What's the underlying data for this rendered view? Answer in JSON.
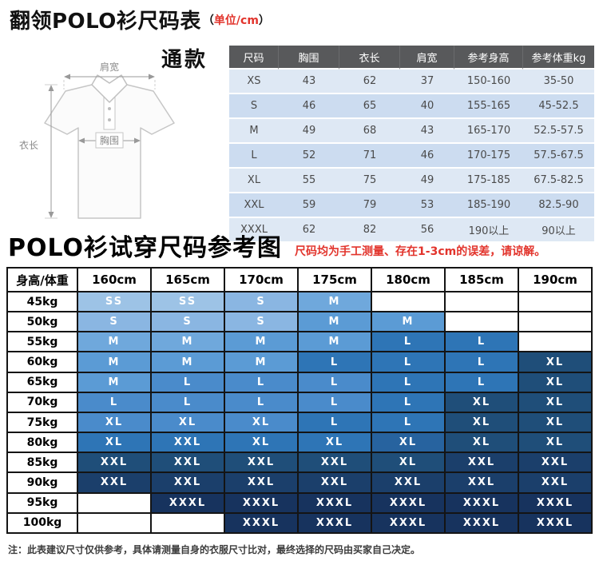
{
  "header": {
    "title": "翻领POLO衫尺码表",
    "unit_open": "（",
    "unit_text": "单位/cm",
    "unit_close": "）"
  },
  "diagram": {
    "style_label": "通款",
    "shoulder_label": "肩宽",
    "length_label": "衣长",
    "chest_label": "胸围"
  },
  "size_table": {
    "headers": [
      "尺码",
      "胸围",
      "衣长",
      "肩宽",
      "参考身高",
      "参考体重kg"
    ],
    "rows": [
      [
        "XS",
        "43",
        "62",
        "37",
        "150-160",
        "35-50"
      ],
      [
        "S",
        "46",
        "65",
        "40",
        "155-165",
        "45-52.5"
      ],
      [
        "M",
        "49",
        "68",
        "43",
        "165-170",
        "52.5-57.5"
      ],
      [
        "L",
        "52",
        "71",
        "46",
        "170-175",
        "57.5-67.5"
      ],
      [
        "XL",
        "55",
        "75",
        "49",
        "175-185",
        "67.5-82.5"
      ],
      [
        "XXL",
        "59",
        "79",
        "53",
        "185-190",
        "82.5-90"
      ],
      [
        "XXXL",
        "62",
        "82",
        "56",
        "190以上",
        "90以上"
      ]
    ]
  },
  "fit_chart": {
    "title": "POLO衫试穿尺码参考图",
    "note": "尺码均为手工测量、存在1-3cm的误差，请谅解。",
    "corner_header": "身高/体重",
    "height_headers": [
      "160cm",
      "165cm",
      "170cm",
      "175cm",
      "180cm",
      "185cm",
      "190cm"
    ],
    "rows": [
      {
        "weight": "45kg",
        "cells": [
          {
            "label": "SS",
            "color": "#9DC3E6"
          },
          {
            "label": "SS",
            "color": "#9DC3E6"
          },
          {
            "label": "S",
            "color": "#8AB6E2"
          },
          {
            "label": "M",
            "color": "#6FA8DC"
          },
          null,
          null,
          null
        ]
      },
      {
        "weight": "50kg",
        "cells": [
          {
            "label": "S",
            "color": "#8AB6E2"
          },
          {
            "label": "S",
            "color": "#8AB6E2"
          },
          {
            "label": "S",
            "color": "#8AB6E2"
          },
          {
            "label": "M",
            "color": "#5B9BD5"
          },
          {
            "label": "M",
            "color": "#5B9BD5"
          },
          null,
          null
        ]
      },
      {
        "weight": "55kg",
        "cells": [
          {
            "label": "M",
            "color": "#6FA8DC"
          },
          {
            "label": "M",
            "color": "#6FA8DC"
          },
          {
            "label": "M",
            "color": "#5B9BD5"
          },
          {
            "label": "M",
            "color": "#5B9BD5"
          },
          {
            "label": "L",
            "color": "#2E75B6"
          },
          {
            "label": "L",
            "color": "#2E75B6"
          },
          null
        ]
      },
      {
        "weight": "60kg",
        "cells": [
          {
            "label": "M",
            "color": "#5B9BD5"
          },
          {
            "label": "M",
            "color": "#5B9BD5"
          },
          {
            "label": "M",
            "color": "#5B9BD5"
          },
          {
            "label": "L",
            "color": "#2E75B6"
          },
          {
            "label": "L",
            "color": "#2E75B6"
          },
          {
            "label": "L",
            "color": "#2E75B6"
          },
          {
            "label": "XL",
            "color": "#1F4E79"
          }
        ]
      },
      {
        "weight": "65kg",
        "cells": [
          {
            "label": "M",
            "color": "#5B9BD5"
          },
          {
            "label": "L",
            "color": "#4A8BCB"
          },
          {
            "label": "L",
            "color": "#4A8BCB"
          },
          {
            "label": "L",
            "color": "#4A8BCB"
          },
          {
            "label": "L",
            "color": "#2E75B6"
          },
          {
            "label": "L",
            "color": "#2E75B6"
          },
          {
            "label": "XL",
            "color": "#1F4E79"
          }
        ]
      },
      {
        "weight": "70kg",
        "cells": [
          {
            "label": "L",
            "color": "#4A8BCB"
          },
          {
            "label": "L",
            "color": "#4A8BCB"
          },
          {
            "label": "L",
            "color": "#4A8BCB"
          },
          {
            "label": "L",
            "color": "#4A8BCB"
          },
          {
            "label": "L",
            "color": "#2E75B6"
          },
          {
            "label": "XL",
            "color": "#1F4E79"
          },
          {
            "label": "XL",
            "color": "#1F4E79"
          }
        ]
      },
      {
        "weight": "75kg",
        "cells": [
          {
            "label": "XL",
            "color": "#4A8BCB"
          },
          {
            "label": "XL",
            "color": "#4A8BCB"
          },
          {
            "label": "XL",
            "color": "#4A8BCB"
          },
          {
            "label": "L",
            "color": "#2E75B6"
          },
          {
            "label": "L",
            "color": "#2E75B6"
          },
          {
            "label": "XL",
            "color": "#1F4E79"
          },
          {
            "label": "XL",
            "color": "#1F4E79"
          }
        ]
      },
      {
        "weight": "80kg",
        "cells": [
          {
            "label": "XL",
            "color": "#2E75B6"
          },
          {
            "label": "XXL",
            "color": "#2E75B6"
          },
          {
            "label": "XL",
            "color": "#2E75B6"
          },
          {
            "label": "XL",
            "color": "#2E75B6"
          },
          {
            "label": "XL",
            "color": "#27639F"
          },
          {
            "label": "XL",
            "color": "#1F4E79"
          },
          {
            "label": "XL",
            "color": "#1F4E79"
          }
        ]
      },
      {
        "weight": "85kg",
        "cells": [
          {
            "label": "XXL",
            "color": "#1F4E79"
          },
          {
            "label": "XXL",
            "color": "#1F4E79"
          },
          {
            "label": "XXL",
            "color": "#1F4E79"
          },
          {
            "label": "XXL",
            "color": "#1F4E79"
          },
          {
            "label": "XL",
            "color": "#1F4E79"
          },
          {
            "label": "XXL",
            "color": "#1B3F6B"
          },
          {
            "label": "XXL",
            "color": "#1B3F6B"
          }
        ]
      },
      {
        "weight": "90kg",
        "cells": [
          {
            "label": "XXL",
            "color": "#1B3F6B"
          },
          {
            "label": "XXL",
            "color": "#1B3F6B"
          },
          {
            "label": "XXL",
            "color": "#1B3F6B"
          },
          {
            "label": "XXL",
            "color": "#1B3F6B"
          },
          {
            "label": "XXL",
            "color": "#1B3F6B"
          },
          {
            "label": "XXL",
            "color": "#1B3F6B"
          },
          {
            "label": "XXL",
            "color": "#1B3F6B"
          }
        ]
      },
      {
        "weight": "95kg",
        "cells": [
          null,
          {
            "label": "XXXL",
            "color": "#17335E"
          },
          {
            "label": "XXXL",
            "color": "#17335E"
          },
          {
            "label": "XXXL",
            "color": "#17335E"
          },
          {
            "label": "XXXL",
            "color": "#17335E"
          },
          {
            "label": "XXXL",
            "color": "#17335E"
          },
          {
            "label": "XXXL",
            "color": "#17335E"
          }
        ]
      },
      {
        "weight": "100kg",
        "cells": [
          null,
          null,
          {
            "label": "XXXL",
            "color": "#17335E"
          },
          {
            "label": "XXXL",
            "color": "#17335E"
          },
          {
            "label": "XXXL",
            "color": "#17335E"
          },
          {
            "label": "XXXL",
            "color": "#17335E"
          },
          {
            "label": "XXXL",
            "color": "#17335E"
          }
        ]
      }
    ]
  },
  "footer_note": "注：此表建议尺寸仅供参考，具体请测量自身的衣服尺寸比对，最终选择的尺码由买家自己决定。"
}
